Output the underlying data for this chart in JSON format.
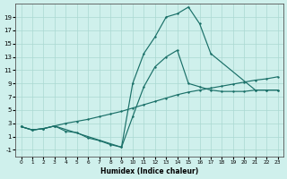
{
  "xlabel": "Humidex (Indice chaleur)",
  "background_color": "#cff0ec",
  "grid_color": "#aad8d2",
  "line_color": "#1a7068",
  "x_ticks": [
    0,
    1,
    2,
    3,
    4,
    5,
    6,
    7,
    8,
    9,
    10,
    11,
    12,
    13,
    14,
    15,
    16,
    17,
    18,
    19,
    20,
    21,
    22,
    23
  ],
  "y_ticks": [
    -1,
    1,
    3,
    5,
    7,
    9,
    11,
    13,
    15,
    17,
    19
  ],
  "ylim": [
    -2.0,
    21.0
  ],
  "xlim": [
    -0.5,
    23.5
  ],
  "curve1": {
    "x": [
      0,
      1,
      2,
      3,
      4,
      5,
      6,
      7,
      8,
      9,
      10,
      11,
      12,
      13,
      14,
      15,
      16,
      17,
      18,
      19,
      20,
      21,
      22,
      23
    ],
    "y": [
      2.5,
      2.0,
      2.2,
      2.6,
      3.0,
      3.3,
      3.6,
      4.0,
      4.4,
      4.8,
      5.3,
      5.8,
      6.3,
      6.8,
      7.3,
      7.7,
      8.0,
      8.3,
      8.6,
      8.9,
      9.2,
      9.5,
      9.7,
      10.0
    ]
  },
  "curve2": {
    "x": [
      0,
      1,
      2,
      3,
      4,
      5,
      6,
      7,
      8,
      9,
      10,
      11,
      12,
      13,
      14,
      15,
      16,
      17,
      18,
      19,
      20,
      21,
      22,
      23
    ],
    "y": [
      2.5,
      2.0,
      2.2,
      2.6,
      1.8,
      1.6,
      0.8,
      0.4,
      -0.2,
      -0.6,
      4.0,
      8.5,
      11.5,
      13.0,
      14.0,
      9.0,
      8.5,
      8.0,
      7.8,
      7.8,
      7.8,
      8.0,
      8.0,
      8.0
    ]
  },
  "curve3": {
    "x": [
      0,
      1,
      2,
      3,
      9,
      10,
      11,
      12,
      13,
      14,
      15,
      16,
      17,
      21,
      22,
      23
    ],
    "y": [
      2.5,
      2.0,
      2.2,
      2.6,
      -0.6,
      9.0,
      13.5,
      16.0,
      19.0,
      19.5,
      20.5,
      18.0,
      13.5,
      8.0,
      8.0,
      8.0
    ]
  }
}
